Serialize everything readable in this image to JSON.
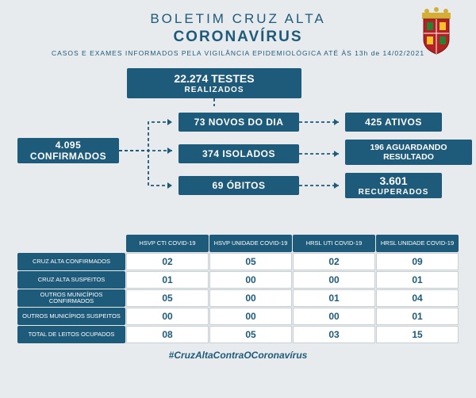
{
  "colors": {
    "primary": "#1e5a7a",
    "bg": "#e8ebed",
    "cell_bg": "#ffffff",
    "cell_border": "#c8d0d6"
  },
  "header": {
    "line1": "BOLETIM CRUZ ALTA",
    "line2": "CORONAVÍRUS",
    "sub": "CASOS E EXAMES INFORMADOS PELA VIGILÂNCIA EPIDEMIOLÓGICA ATÉ ÀS 13h de 14/02/2021"
  },
  "flow": {
    "tests": {
      "n": "22.274 TESTES",
      "l": "REALIZADOS"
    },
    "confirmed": "4.095 CONFIRMADOS",
    "novos": "73 NOVOS DO DIA",
    "isolados": "374 ISOLADOS",
    "obitos": "69 ÓBITOS",
    "ativos": "425 ATIVOS",
    "aguardando": {
      "a": "196  AGUARDANDO",
      "b": "RESULTADO"
    },
    "recuperados": {
      "n": "3.601",
      "l": "RECUPERADOS"
    }
  },
  "table": {
    "row_labels": [
      "CRUZ ALTA CONFIRMADOS",
      "CRUZ ALTA SUSPEITOS",
      "OUTROS MUNICÍPIOS CONFIRMADOS",
      "OUTROS MUNICÍPIOS SUSPEITOS",
      "TOTAL DE LEITOS OCUPADOS"
    ],
    "col_labels": [
      "HSVP CTI COVID-19",
      "HSVP UNIDADE COVID-19",
      "HRSL UTI COVID-19",
      "HRSL UNIDADE COVID-19"
    ],
    "rows": [
      [
        "02",
        "05",
        "02",
        "09"
      ],
      [
        "01",
        "00",
        "00",
        "01"
      ],
      [
        "05",
        "00",
        "01",
        "04"
      ],
      [
        "00",
        "00",
        "00",
        "01"
      ],
      [
        "08",
        "05",
        "03",
        "15"
      ]
    ]
  },
  "hashtag": "#CruzAltaContraOCoronavírus"
}
